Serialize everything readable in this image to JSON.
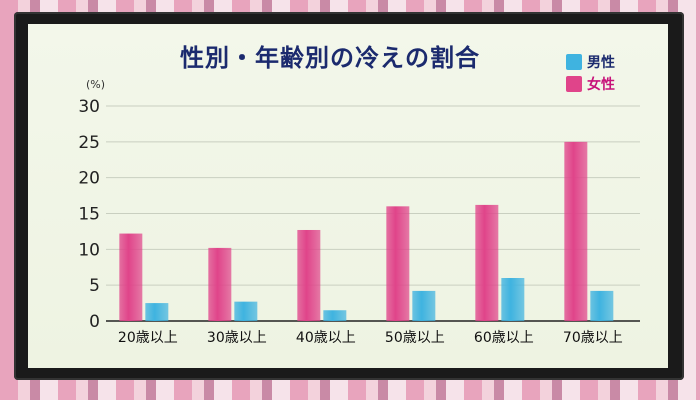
{
  "chart_data": {
    "type": "bar",
    "title": "性別・年齢別の冷えの割合",
    "ylabel": "(%)",
    "xlabel": "",
    "ylim": [
      0,
      30
    ],
    "yticks": [
      0,
      5,
      10,
      15,
      20,
      25,
      30
    ],
    "grid": true,
    "legend_position": "top-right",
    "categories": [
      "20歳以上",
      "30歳以上",
      "40歳以上",
      "50歳以上",
      "60歳以上",
      "70歳以上"
    ],
    "series": [
      {
        "name": "女性",
        "color": "#e0448a",
        "values": [
          12.2,
          10.2,
          12.7,
          16.0,
          16.2,
          25.0
        ]
      },
      {
        "name": "男性",
        "color": "#3fb3e0",
        "values": [
          2.5,
          2.7,
          1.5,
          4.2,
          6.0,
          4.2
        ]
      }
    ]
  },
  "legend": [
    {
      "label": "男性",
      "color": "#3fb3e0",
      "text_color": "#1b2a6e"
    },
    {
      "label": "女性",
      "color": "#e0448a",
      "text_color": "#c7127a"
    }
  ]
}
